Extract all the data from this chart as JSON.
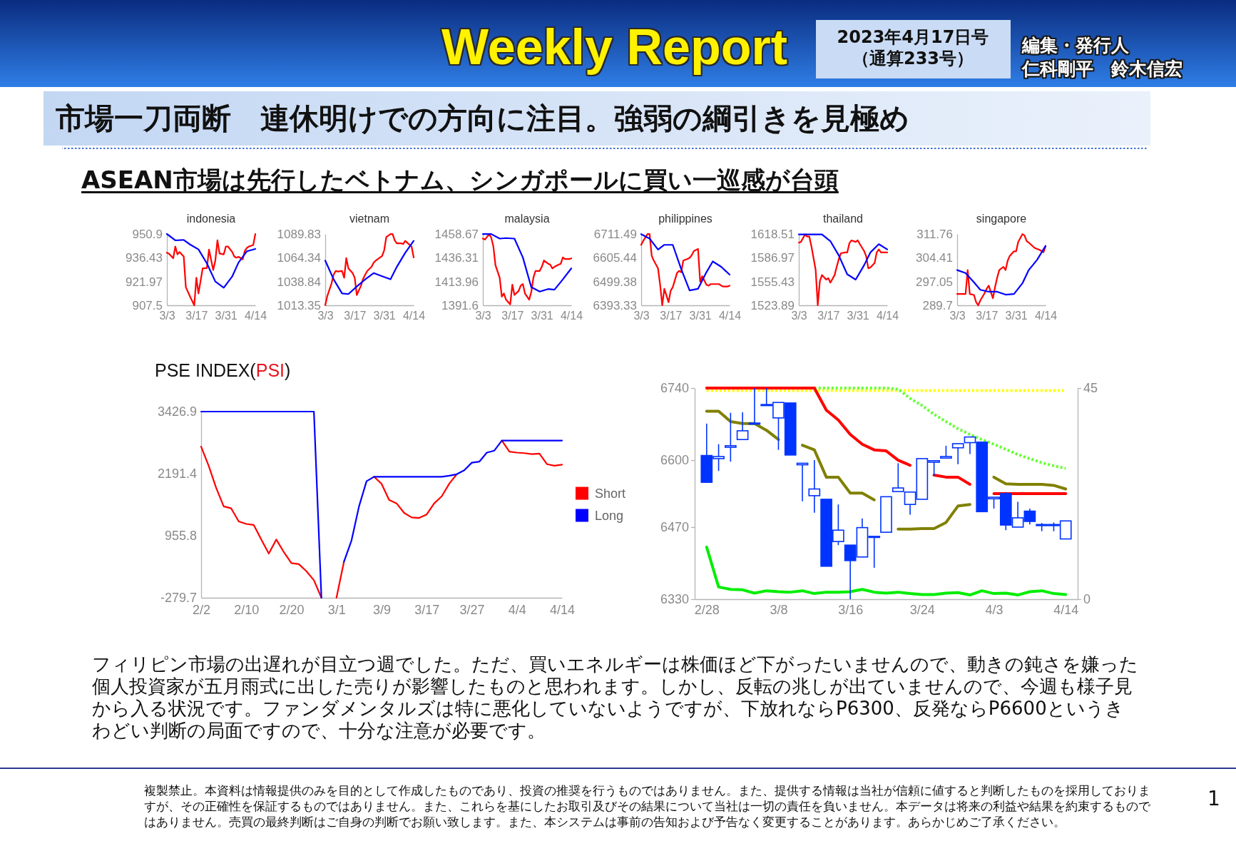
{
  "chart_data": [
    {
      "type": "other",
      "title": "市場一刀両断　連休明けでの方向に注目。強弱の綱引きを見極め",
      "subtitle": "ASEAN市場は先行したベトナム、シンガポールに買い一巡感が台頭",
      "annotations": [
        "Weekly Report",
        "2023年4月17日号",
        "（通算233号）",
        "編集・発行人",
        "仁科剛平　鈴木信宏"
      ]
    },
    {
      "type": "line",
      "title": "indonesia",
      "x": [
        "--03-03",
        "--03-04",
        "--03-06",
        "--03-07",
        "--03-08",
        "--03-09",
        "--03-11",
        "--03-12",
        "--03-13",
        "--03-14",
        "--03-16",
        "--03-17",
        "--03-18",
        "--03-20",
        "--03-21",
        "--03-22",
        "--03-23",
        "--03-25",
        "--03-26",
        "--03-27",
        "--03-28",
        "--03-30",
        "--03-31",
        "--04-01",
        "--04-03",
        "--04-04",
        "--04-05",
        "--04-06",
        "--04-08",
        "--04-09",
        "--04-10",
        "--04-11",
        "--04-13",
        "--04-14"
      ],
      "xlim": [
        "--03-03",
        "--04-14"
      ],
      "xticks": [
        {
          "value": "--03-03",
          "label": "3/3"
        },
        {
          "value": "--03-17",
          "label": "3/17"
        },
        {
          "value": "--03-31",
          "label": "3/31"
        },
        {
          "value": "--04-14",
          "label": "4/14"
        }
      ],
      "ylim": [
        907.5,
        950.9
      ],
      "yticks": [
        907.5,
        921.97,
        936.43,
        950.9
      ],
      "series": [
        {
          "color": "#ff0000",
          "values": [
            939.5,
            938.9,
            936.1,
            943.3,
            938.5,
            939.9,
            937.2,
            918.5,
            915.7,
            912.8,
            907.5,
            924.3,
            914.7,
            930.0,
            930.0,
            930.2,
            941.4,
            929.0,
            934.7,
            947.1,
            939.0,
            938.5,
            943.3,
            943.3,
            940.0,
            937.2,
            936.5,
            937.0,
            935.5,
            940.5,
            942.5,
            943.3,
            944.2,
            950.9
          ]
        },
        {
          "color": "#0000ff",
          "x": [
            "--03-03",
            "--03-07",
            "--03-11",
            "--03-14",
            "--03-18",
            "--03-22",
            "--03-26",
            "--03-30",
            "--04-03",
            "--04-06",
            "--04-10",
            "--04-14"
          ],
          "values": [
            950.9,
            947.0,
            947.3,
            944.5,
            941.5,
            933.0,
            922.0,
            918.2,
            925.0,
            933.5,
            940.4,
            941.8
          ]
        }
      ]
    },
    {
      "type": "line",
      "title": "vietnam",
      "x": [
        "--03-03",
        "--03-04",
        "--03-06",
        "--03-07",
        "--03-08",
        "--03-09",
        "--03-11",
        "--03-12",
        "--03-13",
        "--03-14",
        "--03-16",
        "--03-17",
        "--03-18",
        "--03-20",
        "--03-21",
        "--03-22",
        "--03-23",
        "--03-25",
        "--03-26",
        "--03-27",
        "--03-28",
        "--03-30",
        "--03-31",
        "--04-01",
        "--04-03",
        "--04-04",
        "--04-05",
        "--04-06",
        "--04-08",
        "--04-09",
        "--04-10",
        "--04-11",
        "--04-13",
        "--04-14"
      ],
      "xlim": [
        "--03-03",
        "--04-14"
      ],
      "xticks": [
        {
          "value": "--03-03",
          "label": "3/3"
        },
        {
          "value": "--03-17",
          "label": "3/17"
        },
        {
          "value": "--03-31",
          "label": "3/31"
        },
        {
          "value": "--04-14",
          "label": "4/14"
        }
      ],
      "ylim": [
        1013.35,
        1089.83
      ],
      "yticks": [
        1013.35,
        1038.84,
        1064.34,
        1089.83
      ],
      "series": [
        {
          "color": "#ff0000",
          "values": [
            1013.4,
            1023.4,
            1036.8,
            1046.2,
            1050.2,
            1049.6,
            1050.2,
            1042.9,
            1064.0,
            1052.9,
            1047.9,
            1042.9,
            1024.4,
            1034.5,
            1041.9,
            1046.2,
            1050.2,
            1054.6,
            1059.0,
            1061.3,
            1063.0,
            1066.3,
            1072.4,
            1086.5,
            1089.8,
            1089.8,
            1083.1,
            1079.8,
            1079.8,
            1079.1,
            1082.5,
            1080.4,
            1076.4,
            1064.7
          ]
        },
        {
          "color": "#0000ff",
          "x": [
            "--03-03",
            "--03-07",
            "--03-11",
            "--03-14",
            "--03-18",
            "--03-22",
            "--03-26",
            "--03-30",
            "--04-03",
            "--04-06",
            "--04-10",
            "--04-14"
          ],
          "values": [
            1061.3,
            1041.2,
            1026.1,
            1025.4,
            1033.5,
            1041.2,
            1047.9,
            1044.5,
            1041.2,
            1054.6,
            1069.7,
            1082.5
          ]
        }
      ]
    },
    {
      "type": "line",
      "title": "malaysia",
      "x": [
        "--03-03",
        "--03-04",
        "--03-06",
        "--03-07",
        "--03-08",
        "--03-09",
        "--03-11",
        "--03-12",
        "--03-13",
        "--03-14",
        "--03-16",
        "--03-17",
        "--03-18",
        "--03-20",
        "--03-21",
        "--03-22",
        "--03-23",
        "--03-25",
        "--03-26",
        "--03-27",
        "--03-28",
        "--03-30",
        "--03-31",
        "--04-01",
        "--04-03",
        "--04-04",
        "--04-05",
        "--04-06",
        "--04-08",
        "--04-09",
        "--04-10",
        "--04-11",
        "--04-13",
        "--04-14"
      ],
      "xlim": [
        "--03-03",
        "--04-14"
      ],
      "xticks": [
        {
          "value": "--03-03",
          "label": "3/3"
        },
        {
          "value": "--03-17",
          "label": "3/17"
        },
        {
          "value": "--03-31",
          "label": "3/31"
        },
        {
          "value": "--04-14",
          "label": "4/14"
        }
      ],
      "ylim": [
        1391.6,
        1458.67
      ],
      "yticks": [
        1391.6,
        1413.96,
        1436.31,
        1458.67
      ],
      "series": [
        {
          "color": "#ff0000",
          "values": [
            1454.3,
            1453.4,
            1458.6,
            1455.1,
            1446.9,
            1429.3,
            1417.5,
            1399.8,
            1402.8,
            1396.9,
            1392.5,
            1411.0,
            1401.3,
            1405.1,
            1410.1,
            1411.6,
            1402.8,
            1396.9,
            1404.2,
            1417.5,
            1423.9,
            1423.9,
            1427.8,
            1433.7,
            1430.7,
            1429.8,
            1426.3,
            1427.8,
            1429.8,
            1430.7,
            1436.6,
            1435.1,
            1435.1,
            1435.7
          ]
        },
        {
          "color": "#0000ff",
          "x": [
            "--03-03",
            "--03-07",
            "--03-11",
            "--03-14",
            "--03-18",
            "--03-22",
            "--03-26",
            "--03-30",
            "--04-03",
            "--04-06",
            "--04-10",
            "--04-14"
          ],
          "values": [
            1458.6,
            1458.6,
            1454.3,
            1454.8,
            1454.3,
            1436.6,
            1408.7,
            1404.5,
            1406.9,
            1406.3,
            1416.0,
            1426.3
          ]
        }
      ]
    },
    {
      "type": "line",
      "title": "philippines",
      "x": [
        "--03-03",
        "--03-04",
        "--03-06",
        "--03-07",
        "--03-08",
        "--03-09",
        "--03-11",
        "--03-12",
        "--03-13",
        "--03-14",
        "--03-16",
        "--03-17",
        "--03-18",
        "--03-20",
        "--03-21",
        "--03-22",
        "--03-23",
        "--03-25",
        "--03-26",
        "--03-27",
        "--03-28",
        "--03-30",
        "--03-31",
        "--04-01",
        "--04-03",
        "--04-04",
        "--04-05",
        "--04-06",
        "--04-08",
        "--04-09",
        "--04-10",
        "--04-11",
        "--04-13",
        "--04-14"
      ],
      "xlim": [
        "--03-03",
        "--04-14"
      ],
      "xticks": [
        {
          "value": "--03-03",
          "label": "3/3"
        },
        {
          "value": "--03-17",
          "label": "3/17"
        },
        {
          "value": "--03-31",
          "label": "3/31"
        },
        {
          "value": "--04-14",
          "label": "4/14"
        }
      ],
      "ylim": [
        6393.33,
        6711.49
      ],
      "yticks": [
        6393.33,
        6499.38,
        6605.44,
        6711.49
      ],
      "series": [
        {
          "color": "#ff0000",
          "values": [
            6663,
            6681,
            6711,
            6711,
            6614,
            6593,
            6558,
            6485,
            6394,
            6467,
            6407,
            6458,
            6474,
            6537,
            6547,
            6541,
            6593,
            6600,
            6605,
            6617,
            6635,
            6645,
            6499,
            6523,
            6485,
            6481,
            6488,
            6488,
            6488,
            6488,
            6481,
            6477,
            6477,
            6481
          ]
        },
        {
          "color": "#0000ff",
          "x": [
            "--03-03",
            "--03-07",
            "--03-11",
            "--03-14",
            "--03-18",
            "--03-22",
            "--03-26",
            "--03-30",
            "--04-03",
            "--04-06",
            "--04-10",
            "--04-14"
          ],
          "values": [
            6711,
            6691,
            6642,
            6663,
            6663,
            6555,
            6460,
            6467,
            6541,
            6589,
            6565,
            6530
          ]
        }
      ]
    },
    {
      "type": "line",
      "title": "thailand",
      "x": [
        "--03-03",
        "--03-04",
        "--03-06",
        "--03-07",
        "--03-08",
        "--03-09",
        "--03-11",
        "--03-12",
        "--03-13",
        "--03-14",
        "--03-16",
        "--03-17",
        "--03-18",
        "--03-20",
        "--03-21",
        "--03-22",
        "--03-23",
        "--03-25",
        "--03-26",
        "--03-27",
        "--03-28",
        "--03-30",
        "--03-31",
        "--04-01",
        "--04-03",
        "--04-04",
        "--04-05",
        "--04-06",
        "--04-08",
        "--04-09",
        "--04-10",
        "--04-11",
        "--04-13",
        "--04-14"
      ],
      "xlim": [
        "--03-03",
        "--04-14"
      ],
      "xticks": [
        {
          "value": "--03-03",
          "label": "3/3"
        },
        {
          "value": "--03-17",
          "label": "3/17"
        },
        {
          "value": "--03-31",
          "label": "3/31"
        },
        {
          "value": "--04-14",
          "label": "4/14"
        }
      ],
      "ylim": [
        1523.89,
        1618.51
      ],
      "yticks": [
        1523.89,
        1555.43,
        1586.97,
        1618.51
      ],
      "series": [
        {
          "color": "#ff0000",
          "values": [
            1607,
            1608,
            1618,
            1615,
            1615,
            1602,
            1571,
            1524,
            1556,
            1564,
            1558,
            1560,
            1554,
            1564,
            1575,
            1585,
            1593,
            1594,
            1594,
            1606,
            1610,
            1608,
            1610,
            1605,
            1596,
            1589,
            1573,
            1574,
            1580,
            1594,
            1598,
            1594,
            1594,
            1594
          ]
        },
        {
          "color": "#0000ff",
          "x": [
            "--03-03",
            "--03-07",
            "--03-11",
            "--03-14",
            "--03-18",
            "--03-22",
            "--03-26",
            "--03-30",
            "--04-03",
            "--04-06",
            "--04-10",
            "--04-14"
          ],
          "values": [
            1618,
            1618,
            1618,
            1618,
            1609,
            1590,
            1565,
            1558,
            1577,
            1594,
            1605,
            1598
          ]
        }
      ]
    },
    {
      "type": "line",
      "title": "singapore",
      "x": [
        "--03-03",
        "--03-04",
        "--03-06",
        "--03-07",
        "--03-08",
        "--03-09",
        "--03-11",
        "--03-12",
        "--03-13",
        "--03-14",
        "--03-16",
        "--03-17",
        "--03-18",
        "--03-20",
        "--03-21",
        "--03-22",
        "--03-23",
        "--03-25",
        "--03-26",
        "--03-27",
        "--03-28",
        "--03-30",
        "--03-31",
        "--04-01",
        "--04-03",
        "--04-04",
        "--04-05",
        "--04-06",
        "--04-08",
        "--04-09",
        "--04-10",
        "--04-11",
        "--04-13",
        "--04-14"
      ],
      "xlim": [
        "--03-03",
        "--04-14"
      ],
      "xticks": [
        {
          "value": "--03-03",
          "label": "3/3"
        },
        {
          "value": "--03-17",
          "label": "3/17"
        },
        {
          "value": "--03-31",
          "label": "3/31"
        },
        {
          "value": "--04-14",
          "label": "4/14"
        }
      ],
      "ylim": [
        289.7,
        311.76
      ],
      "yticks": [
        289.7,
        297.05,
        304.41,
        311.76
      ],
      "series": [
        {
          "color": "#ff0000",
          "values": [
            293.2,
            293.2,
            293.2,
            293.2,
            300.6,
            293.2,
            292.9,
            290.7,
            289.7,
            291.2,
            293.4,
            294.8,
            295.8,
            291.9,
            295.3,
            298.2,
            300.6,
            301.6,
            300.6,
            303.5,
            305.0,
            306.4,
            306.4,
            309.3,
            311.7,
            311.3,
            309.6,
            309.1,
            307.9,
            307.4,
            307.1,
            306.9,
            306.1,
            307.9
          ]
        },
        {
          "color": "#0000ff",
          "x": [
            "--03-03",
            "--03-07",
            "--03-11",
            "--03-14",
            "--03-18",
            "--03-22",
            "--03-26",
            "--03-30",
            "--04-03",
            "--04-06",
            "--04-10",
            "--04-14"
          ],
          "values": [
            300.6,
            299.7,
            296.8,
            294.5,
            293.9,
            293.9,
            293.0,
            293.2,
            296.5,
            300.6,
            303.8,
            308.1
          ]
        }
      ]
    },
    {
      "type": "line",
      "title": "PSE INDEX(PSI)",
      "categories": [
        "2/2",
        null,
        null,
        null,
        null,
        null,
        "2/10",
        null,
        null,
        null,
        null,
        null,
        "2/20",
        null,
        null,
        null,
        null,
        null,
        "3/1",
        null,
        null,
        null,
        null,
        null,
        "3/9",
        null,
        null,
        null,
        null,
        null,
        "3/17",
        null,
        null,
        null,
        null,
        null,
        "3/27",
        null,
        null,
        null,
        null,
        null,
        "4/4",
        null,
        null,
        null,
        null,
        null,
        "4/14"
      ],
      "ylim": [
        -279.7,
        3426.9
      ],
      "yticks": [
        -279.7,
        955.8,
        2191.4,
        3426.9
      ],
      "legend": "right",
      "series": [
        {
          "name": "Short",
          "color": "#ff0000",
          "values": [
            2730,
            2350,
            1910,
            1540,
            1500,
            1240,
            1190,
            1170,
            880,
            600,
            880,
            630,
            410,
            390,
            250,
            70,
            -279.7,
            null,
            -279.7,
            440,
            null,
            null,
            null,
            2130,
            1990,
            1670,
            1600,
            1410,
            1320,
            1310,
            1380,
            1600,
            1740,
            1990,
            2180,
            null,
            null,
            null,
            null,
            null,
            2850,
            2630,
            2610,
            2600,
            2580,
            2590,
            2380,
            2350,
            2370
          ]
        },
        {
          "name": "Long",
          "color": "#0000ff",
          "values": [
            3426.9,
            3426.9,
            3426.9,
            3426.9,
            3426.9,
            3426.9,
            3426.9,
            3426.9,
            3426.9,
            3426.9,
            3426.9,
            3426.9,
            3426.9,
            3426.9,
            3426.9,
            3426.9,
            -279.7,
            null,
            null,
            440,
            860,
            1540,
            2040,
            2130,
            2130,
            2130,
            2130,
            2130,
            2130,
            2130,
            2130,
            2130,
            2130,
            2150,
            2180,
            2260,
            2410,
            2430,
            2610,
            2650,
            2850,
            2850,
            2850,
            2850,
            2850,
            2850,
            2850,
            2850,
            2850
          ]
        }
      ]
    },
    {
      "type": "candlestick",
      "categories": [
        "2/28",
        null,
        null,
        null,
        null,
        null,
        "3/8",
        null,
        null,
        null,
        null,
        null,
        "3/16",
        null,
        null,
        null,
        null,
        null,
        "3/24",
        null,
        null,
        null,
        null,
        null,
        "4/3",
        null,
        null,
        null,
        null,
        null,
        "4/14"
      ],
      "color": "#0033ff",
      "ylim": [
        6330,
        6740
      ],
      "yticks": [
        6330,
        6470,
        6600,
        6740
      ],
      "y2lim": [
        0,
        45
      ],
      "y2ticks": [
        0,
        45
      ],
      "ohlc": [
        [
          6609,
          6671,
          6557,
          6557
        ],
        [
          6603,
          6631,
          6579,
          6607
        ],
        [
          6625,
          6692,
          6597,
          6628
        ],
        [
          6640,
          6693,
          6640,
          6657
        ],
        [
          6670,
          6740,
          6670,
          6672
        ],
        [
          6706,
          6740,
          6706,
          6708
        ],
        [
          6682,
          6712,
          6620,
          6712
        ],
        [
          6711,
          6711,
          6610,
          6610
        ],
        [
          6591,
          6594,
          6520,
          6594
        ],
        [
          6531,
          6600,
          6498,
          6544
        ],
        [
          6524,
          6524,
          6394,
          6394
        ],
        [
          6442,
          6514,
          6435,
          6464
        ],
        [
          6435,
          6435,
          6330,
          6405
        ],
        [
          6412,
          6487,
          6412,
          6469
        ],
        [
          6450,
          6452,
          6391,
          6452
        ],
        [
          6460,
          6529,
          6460,
          6529
        ],
        [
          6539,
          6594,
          6539,
          6546
        ],
        [
          6514,
          6538,
          6494,
          6538
        ],
        [
          6524,
          6603,
          6524,
          6603
        ],
        [
          6596,
          6599,
          6570,
          6599
        ],
        [
          6604,
          6628,
          6604,
          6607
        ],
        [
          6624,
          6632,
          6592,
          6632
        ],
        [
          6634,
          6645,
          6612,
          6645
        ],
        [
          6635,
          6635,
          6500,
          6500
        ],
        [
          6525,
          6528,
          6506,
          6528
        ],
        [
          6535,
          6538,
          6464,
          6474
        ],
        [
          6470,
          6519,
          6470,
          6488
        ],
        [
          6501,
          6506,
          6475,
          6481
        ],
        [
          6474,
          6478,
          6462,
          6475
        ],
        [
          6474,
          6479,
          6462,
          6475
        ],
        [
          6447,
          6482,
          6447,
          6482
        ]
      ],
      "series": [
        {
          "type": "line",
          "color": "#ffff00",
          "line_style": "dotted",
          "values": [
            6735,
            6735,
            6735,
            6735,
            6735,
            6735,
            6735,
            6735,
            6735,
            6735,
            6735,
            6735,
            6735,
            6735,
            6735,
            6735,
            6735,
            6735,
            6735,
            6735,
            6735,
            6735,
            6735,
            6735,
            6735,
            6735,
            6735,
            6735,
            6735,
            6735,
            6735
          ]
        },
        {
          "type": "line",
          "color": "#66ff33",
          "line_style": "dotted",
          "values": [
            null,
            null,
            null,
            null,
            null,
            null,
            null,
            null,
            null,
            6740,
            6740,
            6740,
            6740,
            6740,
            6740,
            6740,
            6738,
            6720,
            6706,
            6689,
            6675,
            6661,
            6650,
            6640,
            6631,
            6621,
            6611,
            6603,
            6595,
            6589,
            6584
          ]
        },
        {
          "type": "line",
          "color": "#808000",
          "values": [
            6695,
            6695,
            6675,
            6671,
            6671,
            6658,
            6640,
            null,
            6629,
            6620,
            6567,
            6567,
            6536,
            6536,
            6523,
            null,
            6466,
            6466,
            6467,
            6467,
            6479,
            6511,
            6514,
            null,
            6567,
            6554,
            6553,
            6553,
            6553,
            6551,
            6544
          ]
        },
        {
          "type": "line",
          "color": "#ff0000",
          "values": [
            6740,
            6740,
            6740,
            6740,
            6740,
            6740,
            6740,
            6740,
            6740,
            6740,
            6697,
            6678,
            6650,
            6631,
            6620,
            6618,
            6600,
            6590,
            null,
            6571,
            6567,
            6567,
            6553,
            null,
            6535,
            6535,
            6535,
            6535,
            6535,
            6535,
            6535
          ]
        },
        {
          "type": "line",
          "color": "#00ee00",
          "axis": "y2",
          "values": [
            11.1,
            2.6,
            2.1,
            2.0,
            1.3,
            1.8,
            1.6,
            1.5,
            1.8,
            1.2,
            1.5,
            1.5,
            1.6,
            2.1,
            1.5,
            1.3,
            1.5,
            1.2,
            1.0,
            1.0,
            1.3,
            1.4,
            0.9,
            1.8,
            1.2,
            1.3,
            0.9,
            1.6,
            1.8,
            1.2,
            1.0
          ]
        }
      ]
    },
    {
      "type": "other",
      "annotations": [
        "フィリピン市場の出遅れが目立つ週でした。ただ、買いエネルギーは株価ほど下がったいませんので、動きの鈍さを嫌った個人投資家が五月雨式に出した売りが影響したものと思われます。しかし、反転の兆しが出ていませんので、今週も様子見から入る状況です。ファンダメンタルズは特に悪化していないようですが、下放れならP6300、反発ならP6600というきわどい判断の局面ですので、十分な注意が必要です。",
        "複製禁止。本資料は情報提供のみを目的として作成したものであり、投資の推奨を行うものではありません。また、提供する情報は当社が信頼に値すると判断したものを採用しておりますが、その正確性を保証するものではありません。また、これらを基にしたお取引及びその結果について当社は一切の責任を負いません。本データは将来の利益や結果を約束するものではありません。売買の最終判断はご自身の判断でお願い致します。また、本システムは事前の告知および予告なく変更することがあります。あらかじめご了承ください。",
        "1"
      ]
    }
  ]
}
